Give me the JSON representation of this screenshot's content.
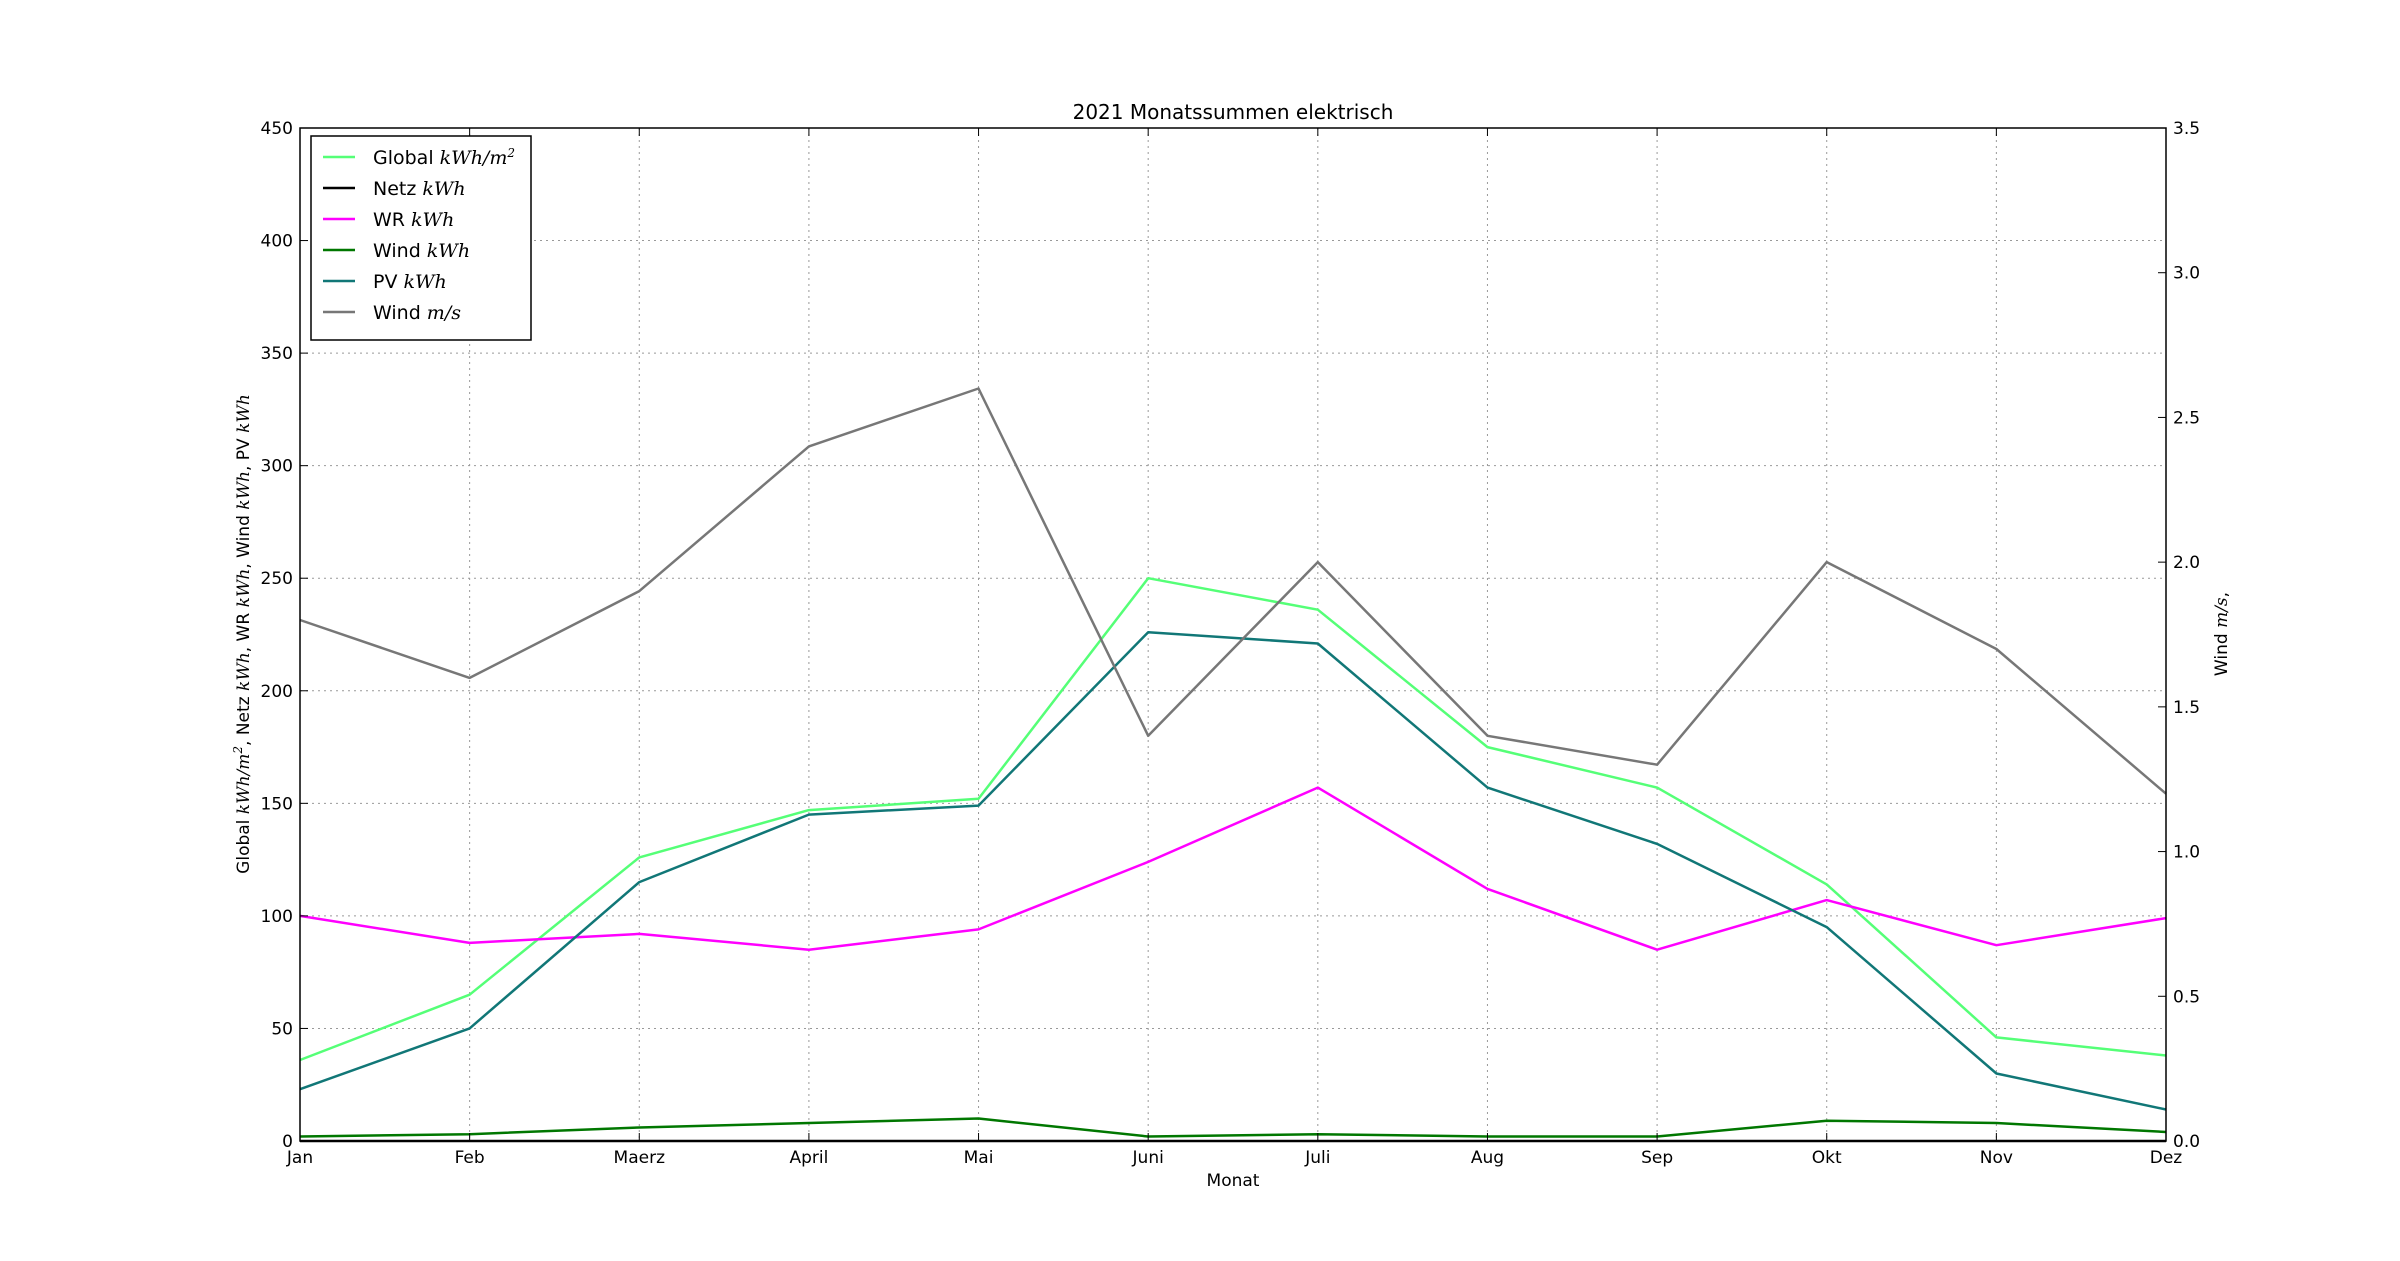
{
  "chart_data": {
    "type": "line",
    "title": "2021 Monatssummen elektrisch",
    "xlabel": "Monat",
    "ylabel": {
      "segments": [
        {
          "t": "Global "
        },
        {
          "t": "kWh/m",
          "i": true
        },
        {
          "t": "2",
          "i": true,
          "sup": true
        },
        {
          "t": ", Netz "
        },
        {
          "t": "kWh",
          "i": true
        },
        {
          "t": ", WR "
        },
        {
          "t": "kWh",
          "i": true
        },
        {
          "t": ", Wind "
        },
        {
          "t": "kWh",
          "i": true
        },
        {
          "t": ", PV "
        },
        {
          "t": "kWh",
          "i": true
        }
      ]
    },
    "y2label": {
      "segments": [
        {
          "t": "Wind "
        },
        {
          "t": "m/s",
          "i": true
        },
        {
          "t": ","
        }
      ]
    },
    "categories": [
      "Jan",
      "Feb",
      "Maerz",
      "April",
      "Mai",
      "Juni",
      "Juli",
      "Aug",
      "Sep",
      "Okt",
      "Nov",
      "Dez"
    ],
    "ylim": [
      0,
      450
    ],
    "yticks": [
      0,
      50,
      100,
      150,
      200,
      250,
      300,
      350,
      400,
      450
    ],
    "y2lim": [
      0,
      3.5
    ],
    "y2ticks": [
      "0.0",
      "0.5",
      "1.0",
      "1.5",
      "2.0",
      "2.5",
      "3.0",
      "3.5"
    ],
    "grid": true,
    "legend_position": "top-left",
    "series": [
      {
        "name": "Global",
        "unit": "kWh/m",
        "unit_sup": "2",
        "axis": "left",
        "color": "#55ff77",
        "values": [
          36,
          65,
          126,
          147,
          152,
          250,
          236,
          175,
          157,
          114,
          46,
          38
        ]
      },
      {
        "name": "Netz",
        "unit": "kWh",
        "axis": "left",
        "color": "#000000",
        "values": [
          0,
          0,
          0,
          0,
          0,
          0,
          0,
          0,
          0,
          0,
          0,
          0
        ]
      },
      {
        "name": "WR",
        "unit": "kWh",
        "axis": "left",
        "color": "#ff00ff",
        "values": [
          100,
          88,
          92,
          85,
          94,
          124,
          157,
          112,
          85,
          107,
          87,
          99
        ]
      },
      {
        "name": "Wind",
        "unit": "kWh",
        "axis": "left",
        "color": "#007700",
        "values": [
          2,
          3,
          6,
          8,
          10,
          2,
          3,
          2,
          2,
          9,
          8,
          4
        ]
      },
      {
        "name": "PV",
        "unit": "kWh",
        "axis": "left",
        "color": "#117777",
        "values": [
          23,
          50,
          115,
          145,
          149,
          226,
          221,
          157,
          132,
          95,
          30,
          14
        ]
      },
      {
        "name": "Wind",
        "unit": "m/s",
        "axis": "right",
        "color": "#777777",
        "values": [
          1.8,
          1.6,
          1.9,
          2.4,
          2.6,
          1.4,
          2.0,
          1.4,
          1.3,
          2.0,
          1.7,
          1.2
        ]
      }
    ]
  }
}
